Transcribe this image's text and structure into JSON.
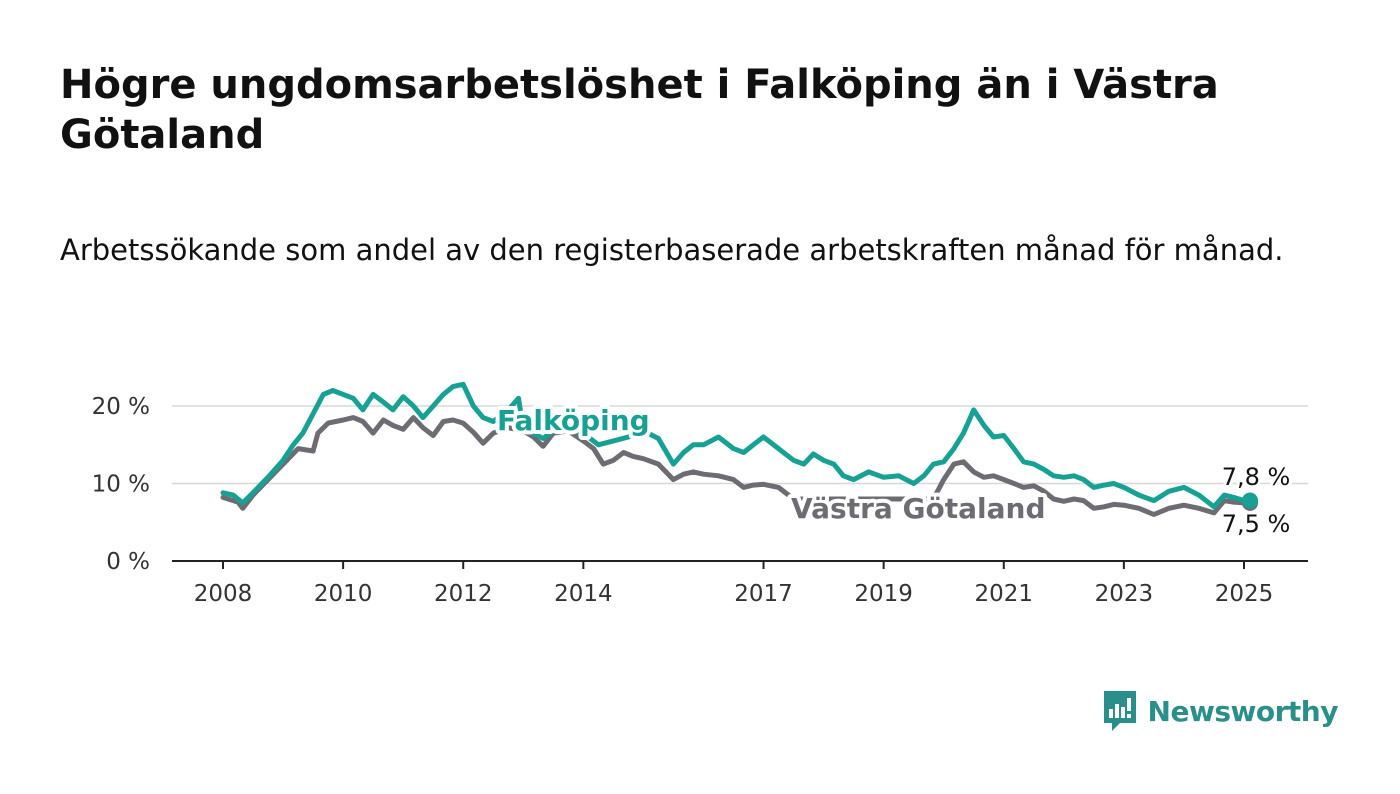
{
  "title": "Högre ungdomsarbetslöshet i Falköping än i Västra Götaland",
  "subtitle": "Arbetssökande som andel av den registerbaserade arbetskraften månad för månad.",
  "brand": {
    "name": "Newsworthy",
    "color": "#2a8f8a"
  },
  "chart_data": {
    "type": "line",
    "title": "Högre ungdomsarbetslöshet i Falköping än i Västra Götaland",
    "xlabel": "",
    "ylabel": "",
    "xlim": [
      2008.0,
      2025.2
    ],
    "ylim": [
      0,
      22
    ],
    "x_ticks": [
      2008,
      2010,
      2012,
      2014,
      2017,
      2019,
      2021,
      2023,
      2025
    ],
    "y_ticks": [
      {
        "value": 0,
        "label": "0 %"
      },
      {
        "value": 10,
        "label": "10 %"
      },
      {
        "value": 20,
        "label": "20 %"
      }
    ],
    "grid": true,
    "series": [
      {
        "name": "Västra Götaland",
        "color": "#6d6c72",
        "end_label": "7,5 %",
        "points": [
          [
            2008.0,
            8.2
          ],
          [
            2008.25,
            7.6
          ],
          [
            2008.33,
            6.8
          ],
          [
            2008.5,
            8.5
          ],
          [
            2008.75,
            10.5
          ],
          [
            2009.0,
            12.5
          ],
          [
            2009.25,
            14.5
          ],
          [
            2009.5,
            14.2
          ],
          [
            2009.58,
            16.5
          ],
          [
            2009.75,
            17.8
          ],
          [
            2010.0,
            18.2
          ],
          [
            2010.17,
            18.5
          ],
          [
            2010.33,
            18.0
          ],
          [
            2010.5,
            16.5
          ],
          [
            2010.67,
            18.2
          ],
          [
            2010.83,
            17.5
          ],
          [
            2011.0,
            17.0
          ],
          [
            2011.17,
            18.5
          ],
          [
            2011.33,
            17.2
          ],
          [
            2011.5,
            16.2
          ],
          [
            2011.67,
            18.0
          ],
          [
            2011.83,
            18.2
          ],
          [
            2012.0,
            17.8
          ],
          [
            2012.17,
            16.6
          ],
          [
            2012.33,
            15.2
          ],
          [
            2012.5,
            16.5
          ],
          [
            2012.75,
            17.2
          ],
          [
            2013.0,
            16.8
          ],
          [
            2013.17,
            16.0
          ],
          [
            2013.33,
            14.8
          ],
          [
            2013.5,
            16.5
          ],
          [
            2013.75,
            16.8
          ],
          [
            2014.0,
            15.5
          ],
          [
            2014.17,
            14.5
          ],
          [
            2014.33,
            12.5
          ],
          [
            2014.5,
            13.0
          ],
          [
            2014.67,
            14.0
          ],
          [
            2014.83,
            13.5
          ],
          [
            2015.0,
            13.2
          ],
          [
            2015.25,
            12.5
          ],
          [
            2015.5,
            10.5
          ],
          [
            2015.67,
            11.2
          ],
          [
            2015.83,
            11.5
          ],
          [
            2016.0,
            11.2
          ],
          [
            2016.25,
            11.0
          ],
          [
            2016.5,
            10.5
          ],
          [
            2016.67,
            9.5
          ],
          [
            2016.83,
            9.8
          ],
          [
            2017.0,
            9.9
          ],
          [
            2017.25,
            9.5
          ],
          [
            2017.5,
            8.0
          ],
          [
            2019.83,
            8.0
          ],
          [
            2020.0,
            10.5
          ],
          [
            2020.17,
            12.5
          ],
          [
            2020.33,
            12.8
          ],
          [
            2020.5,
            11.5
          ],
          [
            2020.67,
            10.8
          ],
          [
            2020.83,
            11.0
          ],
          [
            2021.0,
            10.5
          ],
          [
            2021.17,
            10.0
          ],
          [
            2021.33,
            9.5
          ],
          [
            2021.5,
            9.7
          ],
          [
            2021.67,
            9.0
          ],
          [
            2021.83,
            8.0
          ],
          [
            2022.0,
            7.7
          ],
          [
            2022.17,
            8.0
          ],
          [
            2022.33,
            7.8
          ],
          [
            2022.5,
            6.8
          ],
          [
            2022.67,
            7.0
          ],
          [
            2022.83,
            7.3
          ],
          [
            2023.0,
            7.2
          ],
          [
            2023.25,
            6.8
          ],
          [
            2023.5,
            6.0
          ],
          [
            2023.75,
            6.8
          ],
          [
            2024.0,
            7.2
          ],
          [
            2024.25,
            6.8
          ],
          [
            2024.5,
            6.2
          ],
          [
            2024.67,
            7.8
          ],
          [
            2024.83,
            7.6
          ],
          [
            2025.0,
            7.5
          ],
          [
            2025.1,
            7.5
          ]
        ]
      },
      {
        "name": "Falköping",
        "color": "#17a195",
        "end_label": "7,8 %",
        "points": [
          [
            2008.0,
            8.8
          ],
          [
            2008.17,
            8.5
          ],
          [
            2008.33,
            7.5
          ],
          [
            2008.5,
            8.8
          ],
          [
            2008.75,
            10.8
          ],
          [
            2009.0,
            13.0
          ],
          [
            2009.17,
            15.0
          ],
          [
            2009.33,
            16.5
          ],
          [
            2009.5,
            19.0
          ],
          [
            2009.67,
            21.5
          ],
          [
            2009.83,
            22.0
          ],
          [
            2010.0,
            21.5
          ],
          [
            2010.17,
            21.0
          ],
          [
            2010.33,
            19.5
          ],
          [
            2010.5,
            21.5
          ],
          [
            2010.67,
            20.5
          ],
          [
            2010.83,
            19.5
          ],
          [
            2011.0,
            21.2
          ],
          [
            2011.17,
            20.0
          ],
          [
            2011.33,
            18.5
          ],
          [
            2011.5,
            20.0
          ],
          [
            2011.67,
            21.5
          ],
          [
            2011.83,
            22.5
          ],
          [
            2012.0,
            22.8
          ],
          [
            2012.17,
            20.0
          ],
          [
            2012.33,
            18.5
          ],
          [
            2012.5,
            18.0
          ],
          [
            2012.75,
            19.5
          ],
          [
            2012.92,
            21.0
          ],
          [
            2013.0,
            17.0
          ],
          [
            2013.17,
            16.5
          ],
          [
            2013.33,
            15.8
          ],
          [
            2013.5,
            16.8
          ],
          [
            2013.75,
            17.0
          ],
          [
            2014.0,
            16.5
          ],
          [
            2014.25,
            15.0
          ],
          [
            2014.5,
            15.5
          ],
          [
            2014.75,
            16.0
          ],
          [
            2015.0,
            16.8
          ],
          [
            2015.25,
            15.8
          ],
          [
            2015.5,
            12.5
          ],
          [
            2015.67,
            14.0
          ],
          [
            2015.83,
            15.0
          ],
          [
            2016.0,
            15.0
          ],
          [
            2016.25,
            16.0
          ],
          [
            2016.5,
            14.5
          ],
          [
            2016.67,
            14.0
          ],
          [
            2016.83,
            15.0
          ],
          [
            2017.0,
            16.0
          ],
          [
            2017.25,
            14.5
          ],
          [
            2017.5,
            13.0
          ],
          [
            2017.67,
            12.5
          ],
          [
            2017.83,
            13.8
          ],
          [
            2018.0,
            13.0
          ],
          [
            2018.17,
            12.5
          ],
          [
            2018.33,
            11.0
          ],
          [
            2018.5,
            10.5
          ],
          [
            2018.75,
            11.5
          ],
          [
            2019.0,
            10.8
          ],
          [
            2019.25,
            11.0
          ],
          [
            2019.5,
            10.0
          ],
          [
            2019.67,
            11.0
          ],
          [
            2019.83,
            12.5
          ],
          [
            2020.0,
            12.8
          ],
          [
            2020.17,
            14.5
          ],
          [
            2020.33,
            16.5
          ],
          [
            2020.5,
            19.5
          ],
          [
            2020.67,
            17.5
          ],
          [
            2020.83,
            16.0
          ],
          [
            2021.0,
            16.2
          ],
          [
            2021.17,
            14.5
          ],
          [
            2021.33,
            12.8
          ],
          [
            2021.5,
            12.5
          ],
          [
            2021.67,
            11.8
          ],
          [
            2021.83,
            11.0
          ],
          [
            2022.0,
            10.8
          ],
          [
            2022.17,
            11.0
          ],
          [
            2022.33,
            10.5
          ],
          [
            2022.5,
            9.5
          ],
          [
            2022.67,
            9.8
          ],
          [
            2022.83,
            10.0
          ],
          [
            2023.0,
            9.5
          ],
          [
            2023.25,
            8.5
          ],
          [
            2023.5,
            7.8
          ],
          [
            2023.75,
            9.0
          ],
          [
            2024.0,
            9.5
          ],
          [
            2024.25,
            8.5
          ],
          [
            2024.5,
            7.0
          ],
          [
            2024.67,
            8.5
          ],
          [
            2024.83,
            8.2
          ],
          [
            2025.0,
            7.8
          ],
          [
            2025.1,
            7.8
          ]
        ]
      }
    ]
  }
}
